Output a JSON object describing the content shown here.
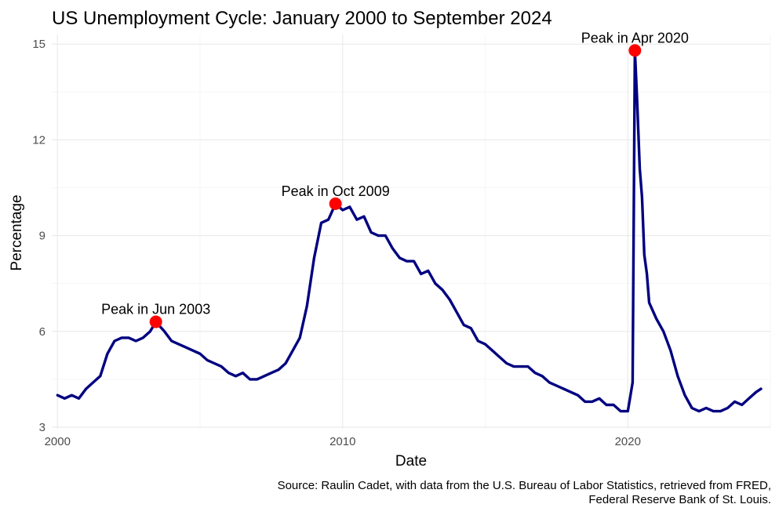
{
  "chart_data": {
    "type": "line",
    "title": "US Unemployment Cycle: January 2000 to September 2024",
    "xlabel": "Date",
    "ylabel": "Percentage",
    "caption_lines": [
      "Source: Raulin Cadet, with data from the U.S. Bureau of Labor Statistics, retrieved from FRED,",
      "Federal Reserve Bank of St. Louis."
    ],
    "xlim": [
      1999.8,
      2025.0
    ],
    "ylim": [
      2.95,
      15.3
    ],
    "x_ticks": [
      2000,
      2010,
      2020
    ],
    "x_tick_labels": [
      "2000",
      "2010",
      "2020"
    ],
    "y_ticks": [
      3,
      6,
      9,
      12,
      15
    ],
    "y_tick_labels": [
      "3",
      "6",
      "9",
      "12",
      "15"
    ],
    "grid": true,
    "line_color": "#000080",
    "marker_color": "#ff0000",
    "series": [
      {
        "x": [
          2000.0,
          2000.25,
          2000.5,
          2000.75,
          2001.0,
          2001.25,
          2001.5,
          2001.75,
          2002.0,
          2002.25,
          2002.5,
          2002.75,
          2003.0,
          2003.25,
          2003.45,
          2003.75,
          2004.0,
          2004.25,
          2004.5,
          2004.75,
          2005.0,
          2005.25,
          2005.5,
          2005.75,
          2006.0,
          2006.25,
          2006.5,
          2006.75,
          2007.0,
          2007.25,
          2007.5,
          2007.75,
          2008.0,
          2008.25,
          2008.5,
          2008.75,
          2009.0,
          2009.25,
          2009.5,
          2009.75,
          2010.0,
          2010.25,
          2010.5,
          2010.75,
          2011.0,
          2011.25,
          2011.5,
          2011.75,
          2012.0,
          2012.25,
          2012.5,
          2012.75,
          2013.0,
          2013.25,
          2013.5,
          2013.75,
          2014.0,
          2014.25,
          2014.5,
          2014.75,
          2015.0,
          2015.25,
          2015.5,
          2015.75,
          2016.0,
          2016.25,
          2016.5,
          2016.75,
          2017.0,
          2017.25,
          2017.5,
          2017.75,
          2018.0,
          2018.25,
          2018.5,
          2018.75,
          2019.0,
          2019.25,
          2019.5,
          2019.75,
          2020.0,
          2020.17,
          2020.25,
          2020.33,
          2020.42,
          2020.5,
          2020.58,
          2020.67,
          2020.75,
          2021.0,
          2021.25,
          2021.5,
          2021.75,
          2022.0,
          2022.25,
          2022.5,
          2022.75,
          2023.0,
          2023.25,
          2023.5,
          2023.75,
          2024.0,
          2024.25,
          2024.5,
          2024.67
        ],
        "values": [
          4.0,
          3.9,
          4.0,
          3.9,
          4.2,
          4.4,
          4.6,
          5.3,
          5.7,
          5.8,
          5.8,
          5.7,
          5.8,
          6.0,
          6.3,
          6.0,
          5.7,
          5.6,
          5.5,
          5.4,
          5.3,
          5.1,
          5.0,
          4.9,
          4.7,
          4.6,
          4.7,
          4.5,
          4.5,
          4.6,
          4.7,
          4.8,
          5.0,
          5.4,
          5.8,
          6.8,
          8.3,
          9.4,
          9.5,
          10.0,
          9.8,
          9.9,
          9.5,
          9.6,
          9.1,
          9.0,
          9.0,
          8.6,
          8.3,
          8.2,
          8.2,
          7.8,
          7.9,
          7.5,
          7.3,
          7.0,
          6.6,
          6.2,
          6.1,
          5.7,
          5.6,
          5.4,
          5.2,
          5.0,
          4.9,
          4.9,
          4.9,
          4.7,
          4.6,
          4.4,
          4.3,
          4.2,
          4.1,
          4.0,
          3.8,
          3.8,
          3.9,
          3.7,
          3.7,
          3.5,
          3.5,
          4.4,
          14.8,
          13.2,
          11.1,
          10.2,
          8.4,
          7.8,
          6.9,
          6.4,
          6.0,
          5.4,
          4.6,
          4.0,
          3.6,
          3.5,
          3.6,
          3.5,
          3.5,
          3.6,
          3.8,
          3.7,
          3.9,
          4.1,
          4.2
        ]
      }
    ],
    "annotations": [
      {
        "label": "Peak in Jun 2003",
        "x": 2003.45,
        "y": 6.3
      },
      {
        "label": "Peak in Oct 2009",
        "x": 2009.75,
        "y": 10.0
      },
      {
        "label": "Peak in Apr 2020",
        "x": 2020.25,
        "y": 14.8
      }
    ]
  }
}
